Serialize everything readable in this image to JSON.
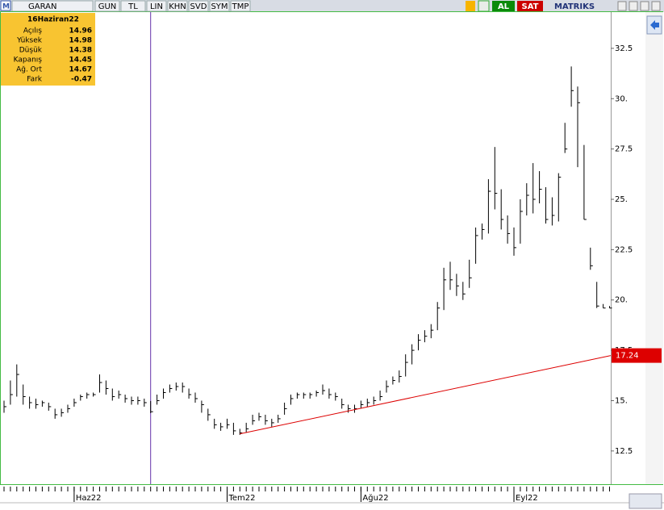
{
  "toolbar": {
    "symbol": "GARAN",
    "buttons": [
      "GUN",
      "TL",
      "LIN",
      "KHN",
      "SVD",
      "SYM",
      "TMP"
    ],
    "buy": "AL",
    "sell": "SAT",
    "brand": "MATRIKS"
  },
  "info_box": {
    "date": "16Haziran22",
    "rows": [
      {
        "label": "Açılış",
        "value": 14.96
      },
      {
        "label": "Yüksek",
        "value": 14.98
      },
      {
        "label": "Düşük",
        "value": 14.38
      },
      {
        "label": "Kapanış",
        "value": 14.45
      },
      {
        "label": "Ağ. Ort",
        "value": 14.67
      },
      {
        "label": "Fark",
        "value": -0.47
      }
    ]
  },
  "chart_data": {
    "type": "ohlc",
    "color": "#000000",
    "categories": [
      null,
      null,
      null,
      null,
      null,
      null,
      null,
      null,
      null,
      null,
      null,
      "Haz22",
      null,
      null,
      null,
      null,
      null,
      null,
      null,
      null,
      null,
      null,
      null,
      null,
      null,
      null,
      null,
      null,
      null,
      null,
      null,
      null,
      null,
      null,
      null,
      "Tem22",
      null,
      null,
      null,
      null,
      null,
      null,
      null,
      null,
      null,
      null,
      null,
      null,
      null,
      null,
      null,
      null,
      null,
      null,
      null,
      null,
      "Ağu22",
      null,
      null,
      null,
      null,
      null,
      null,
      null,
      null,
      null,
      null,
      null,
      null,
      null,
      null,
      null,
      null,
      null,
      null,
      null,
      null,
      null,
      null,
      null,
      "Eyl22",
      null,
      null,
      null,
      null,
      null,
      null,
      null,
      null,
      null,
      null,
      null,
      null,
      null,
      null,
      null
    ],
    "high": [
      15.0,
      16.0,
      16.8,
      15.8,
      15.2,
      15.1,
      15.0,
      14.9,
      14.6,
      14.6,
      14.8,
      15.1,
      15.3,
      15.4,
      15.4,
      16.3,
      16.0,
      15.6,
      15.5,
      15.3,
      15.2,
      15.2,
      15.1,
      14.98,
      15.3,
      15.6,
      15.8,
      15.9,
      15.9,
      15.6,
      15.4,
      15.0,
      14.6,
      14.1,
      13.9,
      14.1,
      13.9,
      13.6,
      13.9,
      14.3,
      14.4,
      14.3,
      14.1,
      14.3,
      14.9,
      15.3,
      15.4,
      15.4,
      15.4,
      15.5,
      15.8,
      15.6,
      15.4,
      15.1,
      14.8,
      14.8,
      15.0,
      15.1,
      15.2,
      15.5,
      16.0,
      16.2,
      16.5,
      17.3,
      17.8,
      18.3,
      18.5,
      18.8,
      19.9,
      21.6,
      21.9,
      21.3,
      20.9,
      22.0,
      23.6,
      23.8,
      26.0,
      27.6,
      25.5,
      24.2,
      23.6,
      25.0,
      25.8,
      26.8,
      26.4,
      25.6,
      25.1,
      26.3,
      28.8,
      31.6,
      30.6,
      27.7,
      22.6,
      20.9,
      19.8,
      19.7
    ],
    "low": [
      14.4,
      14.8,
      15.2,
      14.8,
      14.6,
      14.6,
      14.7,
      14.5,
      14.1,
      14.2,
      14.4,
      14.7,
      15.0,
      15.1,
      15.2,
      15.4,
      15.3,
      15.0,
      15.1,
      14.9,
      14.8,
      14.8,
      14.7,
      14.38,
      14.8,
      15.1,
      15.4,
      15.5,
      15.4,
      15.1,
      14.9,
      14.4,
      14.0,
      13.6,
      13.5,
      13.6,
      13.3,
      13.3,
      13.4,
      13.8,
      14.0,
      13.8,
      13.7,
      13.9,
      14.3,
      14.8,
      15.1,
      15.1,
      15.1,
      15.2,
      15.3,
      15.1,
      15.0,
      14.6,
      14.4,
      14.4,
      14.6,
      14.7,
      14.8,
      15.0,
      15.4,
      15.8,
      15.9,
      16.2,
      16.8,
      17.5,
      17.9,
      18.1,
      18.5,
      19.5,
      20.5,
      20.2,
      20.0,
      20.6,
      21.8,
      23.0,
      23.3,
      24.5,
      23.5,
      22.8,
      22.2,
      22.8,
      24.2,
      24.3,
      24.8,
      23.8,
      23.7,
      23.9,
      27.3,
      29.6,
      26.6,
      24.0,
      21.5,
      19.6,
      19.6,
      19.6
    ],
    "close": [
      14.7,
      15.3,
      16.3,
      15.2,
      14.9,
      14.8,
      14.9,
      14.7,
      14.3,
      14.4,
      14.6,
      14.9,
      15.2,
      15.3,
      15.3,
      15.9,
      15.6,
      15.2,
      15.3,
      15.1,
      15.0,
      15.0,
      14.9,
      14.45,
      15.0,
      15.4,
      15.6,
      15.7,
      15.7,
      15.3,
      15.1,
      14.8,
      14.3,
      13.8,
      13.7,
      13.8,
      13.5,
      13.4,
      13.6,
      14.0,
      14.2,
      14.0,
      13.9,
      14.1,
      14.6,
      15.1,
      15.3,
      15.3,
      15.3,
      15.4,
      15.5,
      15.3,
      15.2,
      14.8,
      14.6,
      14.6,
      14.8,
      14.9,
      15.0,
      15.2,
      15.7,
      16.0,
      16.2,
      16.9,
      17.5,
      18.0,
      18.2,
      18.5,
      19.6,
      21.0,
      21.0,
      20.7,
      20.3,
      21.1,
      23.2,
      23.5,
      25.4,
      25.3,
      24.0,
      23.3,
      22.6,
      24.4,
      25.2,
      25.0,
      25.5,
      24.0,
      24.2,
      26.1,
      27.5,
      30.4,
      29.8,
      24.0,
      21.7,
      19.7,
      19.6,
      19.6
    ],
    "ylim": [
      10.85,
      34.3
    ],
    "yticks": [
      12.5,
      {
        "value": 15,
        "label": "15."
      },
      17.5,
      {
        "value": 20,
        "label": "20."
      },
      22.5,
      {
        "value": 25,
        "label": "25."
      },
      27.5,
      {
        "value": 30,
        "label": "30."
      },
      32.5
    ],
    "trend_line": {
      "start_index": 37,
      "start_value": 13.35,
      "end_value": 17.24,
      "color": "#dd0000"
    },
    "cursor_color": "#6633aa"
  }
}
